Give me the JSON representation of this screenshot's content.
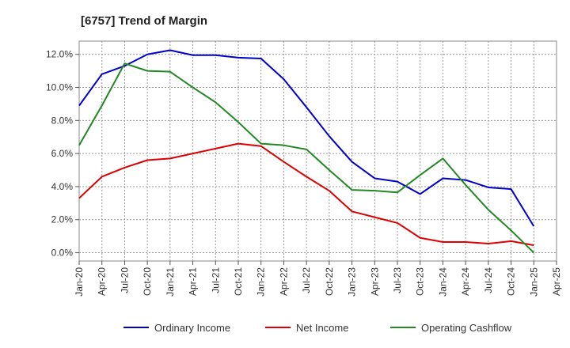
{
  "chart_data": {
    "type": "line",
    "title": "[6757]  Trend of Margin",
    "xlabel": "",
    "ylabel": "",
    "x": [
      "Jan-20",
      "Apr-20",
      "Jul-20",
      "Oct-20",
      "Jan-21",
      "Apr-21",
      "Jul-21",
      "Oct-21",
      "Jan-22",
      "Apr-22",
      "Jul-22",
      "Oct-22",
      "Jan-23",
      "Apr-23",
      "Jul-23",
      "Oct-23",
      "Jan-24",
      "Apr-24",
      "Jul-24",
      "Oct-24",
      "Jan-25"
    ],
    "x_ticks": [
      "Jan-20",
      "Apr-20",
      "Jul-20",
      "Oct-20",
      "Jan-21",
      "Apr-21",
      "Jul-21",
      "Oct-21",
      "Jan-22",
      "Apr-22",
      "Jul-22",
      "Oct-22",
      "Jan-23",
      "Apr-23",
      "Jul-23",
      "Oct-23",
      "Jan-24",
      "Apr-24",
      "Jul-24",
      "Oct-24",
      "Jan-25",
      "Apr-25"
    ],
    "ylim": [
      -0.5,
      12.8
    ],
    "y_ticks": [
      0,
      2,
      4,
      6,
      8,
      10,
      12
    ],
    "y_tick_labels": [
      "0.0%",
      "2.0%",
      "4.0%",
      "6.0%",
      "8.0%",
      "10.0%",
      "12.0%"
    ],
    "grid": true,
    "legend_position": "bottom",
    "series": [
      {
        "name": "Ordinary Income",
        "color": "#0000cc",
        "values": [
          8.9,
          10.8,
          11.3,
          12.0,
          12.25,
          11.95,
          11.95,
          11.8,
          11.75,
          10.5,
          8.8,
          7.05,
          5.5,
          4.5,
          4.3,
          3.55,
          4.5,
          4.4,
          3.95,
          3.85,
          1.6
        ]
      },
      {
        "name": "Net Income",
        "color": "#dd0000",
        "values": [
          3.3,
          4.6,
          5.15,
          5.6,
          5.7,
          6.0,
          6.3,
          6.6,
          6.45,
          5.5,
          4.6,
          3.75,
          2.5,
          2.15,
          1.8,
          0.9,
          0.65,
          0.65,
          0.55,
          0.7,
          0.45
        ]
      },
      {
        "name": "Operating Cashflow",
        "color": "#228822",
        "values": [
          6.5,
          8.9,
          11.45,
          11.0,
          10.95,
          10.0,
          9.1,
          7.9,
          6.6,
          6.5,
          6.25,
          5.0,
          3.8,
          3.75,
          3.65,
          4.7,
          5.7,
          4.1,
          2.6,
          1.35,
          0.0
        ]
      }
    ]
  }
}
